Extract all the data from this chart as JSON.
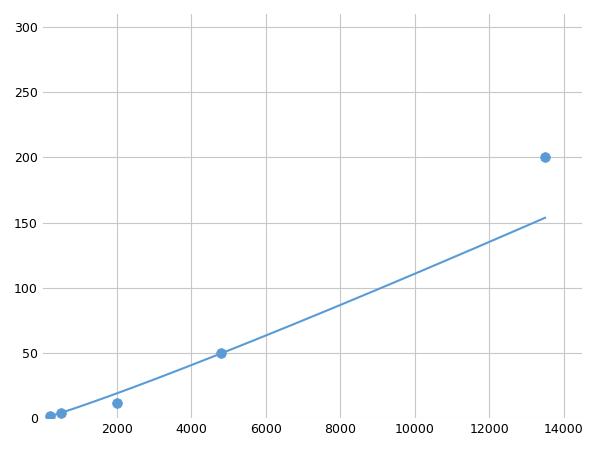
{
  "x": [
    200,
    500,
    2000,
    4800,
    13500
  ],
  "y": [
    2,
    4,
    12,
    50,
    200
  ],
  "line_color": "#5b9bd5",
  "marker_color": "#5b9bd5",
  "marker_size": 7,
  "line_width": 1.5,
  "xlim": [
    0,
    14500
  ],
  "ylim": [
    0,
    310
  ],
  "xticks": [
    2000,
    4000,
    6000,
    8000,
    10000,
    12000,
    14000
  ],
  "yticks": [
    0,
    50,
    100,
    150,
    200,
    250,
    300
  ],
  "grid_color": "#c8c8c8",
  "background_color": "#ffffff",
  "figsize": [
    6.0,
    4.5
  ],
  "dpi": 100
}
